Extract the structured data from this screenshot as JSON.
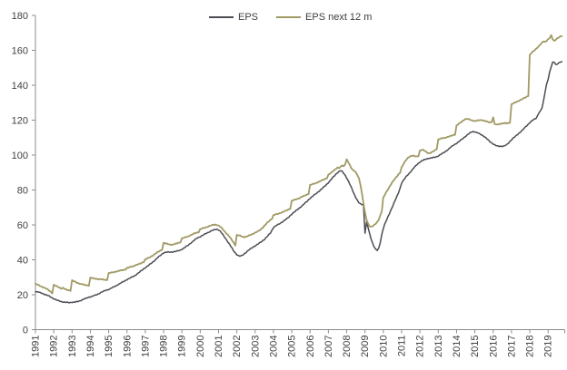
{
  "chart_data": {
    "type": "line",
    "title": "",
    "x_unit": "monthly",
    "x_start": "1991-01",
    "x_end": "2019-10",
    "x_tick_labels": [
      "1991",
      "1992",
      "1993",
      "1994",
      "1995",
      "1996",
      "1997",
      "1998",
      "1999",
      "2000",
      "2001",
      "2002",
      "2003",
      "2004",
      "2005",
      "2006",
      "2007",
      "2008",
      "2009",
      "2010",
      "2011",
      "2012",
      "2013",
      "2014",
      "2015",
      "2016",
      "2017",
      "2018",
      "2019"
    ],
    "y_ticks": [
      0,
      20,
      40,
      60,
      80,
      100,
      120,
      140,
      160,
      180
    ],
    "ylim": [
      0,
      180
    ],
    "grid": false,
    "legend_position": "top-center",
    "axis_color": "#8c8c8c",
    "text_color": "#404040",
    "series": [
      {
        "name": "EPS",
        "color": "#4c4c54",
        "values": [
          21.8,
          21.6,
          21.5,
          21.2,
          21.0,
          20.6,
          20.2,
          19.9,
          19.6,
          19.2,
          18.7,
          18.2,
          17.7,
          17.3,
          16.9,
          16.6,
          16.3,
          16.1,
          15.9,
          15.7,
          15.6,
          15.6,
          15.5,
          15.6,
          15.7,
          15.7,
          15.8,
          16.0,
          16.2,
          16.5,
          16.8,
          17.2,
          17.5,
          17.9,
          18.3,
          18.6,
          18.8,
          19.0,
          19.3,
          19.6,
          20.0,
          20.4,
          20.8,
          21.3,
          21.7,
          22.1,
          22.5,
          22.8,
          23.0,
          23.4,
          23.9,
          24.3,
          24.8,
          25.2,
          25.7,
          26.2,
          26.7,
          27.2,
          27.7,
          28.2,
          28.7,
          29.1,
          29.5,
          30.0,
          30.4,
          30.9,
          31.5,
          32.1,
          32.8,
          33.5,
          34.2,
          34.9,
          35.5,
          36.1,
          36.7,
          37.4,
          38.1,
          38.8,
          39.5,
          40.3,
          41.1,
          41.9,
          42.6,
          43.3,
          44.0,
          44.2,
          44.3,
          44.4,
          44.4,
          44.5,
          44.5,
          44.6,
          44.8,
          45.0,
          45.3,
          45.6,
          46.0,
          46.5,
          47.1,
          47.7,
          48.3,
          49.0,
          49.7,
          50.4,
          51.1,
          51.8,
          52.5,
          52.9,
          53.2,
          53.7,
          54.2,
          54.7,
          55.2,
          55.6,
          56.0,
          56.4,
          56.8,
          57.1,
          57.4,
          57.5,
          57.2,
          56.4,
          55.4,
          54.2,
          53.0,
          51.7,
          50.4,
          49.1,
          47.8,
          46.4,
          45.0,
          43.9,
          43.0,
          42.4,
          42.1,
          42.3,
          42.8,
          43.5,
          44.2,
          45.0,
          45.7,
          46.3,
          46.9,
          47.5,
          48.0,
          48.5,
          49.1,
          49.7,
          50.3,
          51.0,
          51.7,
          52.5,
          53.4,
          54.4,
          55.4,
          56.9,
          58.5,
          59.1,
          59.7,
          60.2,
          60.7,
          61.2,
          61.8,
          62.4,
          63.0,
          63.7,
          64.4,
          65.3,
          66.2,
          66.9,
          67.6,
          68.3,
          69.0,
          69.7,
          70.4,
          71.1,
          71.9,
          72.7,
          73.5,
          74.4,
          75.2,
          75.9,
          76.6,
          77.3,
          78.0,
          78.7,
          79.4,
          80.1,
          80.9,
          81.7,
          82.5,
          83.3,
          84.2,
          85.2,
          86.2,
          87.2,
          88.2,
          89.1,
          90.0,
          90.6,
          91.0,
          90.6,
          89.6,
          88.4,
          87.0,
          85.2,
          83.4,
          81.5,
          79.5,
          77.5,
          75.7,
          74.0,
          72.7,
          72.0,
          71.7,
          71.5,
          55.5,
          61.5,
          58.5,
          55.0,
          52.0,
          49.5,
          47.5,
          46.0,
          45.4,
          46.5,
          50.0,
          54.5,
          58.0,
          60.5,
          62.5,
          64.5,
          66.5,
          68.5,
          70.5,
          72.5,
          74.5,
          76.5,
          78.5,
          81.0,
          84.0,
          85.3,
          86.5,
          87.6,
          88.6,
          89.6,
          90.6,
          91.6,
          92.6,
          93.6,
          94.5,
          95.3,
          96.0,
          96.5,
          97.0,
          97.4,
          97.7,
          98.0,
          98.2,
          98.3,
          98.4,
          98.6,
          98.8,
          99.1,
          99.5,
          100.0,
          100.5,
          101.0,
          101.6,
          102.2,
          102.9,
          103.6,
          104.3,
          105.0,
          105.7,
          106.2,
          106.7,
          107.3,
          108.0,
          108.7,
          109.4,
          110.1,
          110.8,
          111.5,
          112.2,
          112.8,
          113.3,
          113.5,
          113.3,
          113.0,
          112.6,
          112.2,
          111.8,
          111.3,
          110.7,
          110.0,
          109.2,
          108.4,
          107.6,
          107.0,
          106.4,
          105.8,
          105.4,
          105.1,
          105.0,
          105.1,
          105.0,
          105.2,
          105.5,
          106.0,
          106.8,
          107.8,
          108.8,
          109.6,
          110.3,
          111.0,
          111.8,
          112.6,
          113.4,
          114.2,
          115.0,
          115.9,
          116.8,
          117.7,
          118.6,
          119.3,
          120.0,
          120.5,
          121.0,
          122.3,
          124.3,
          125.3,
          127.0,
          131.0,
          136.0,
          140.5,
          143.5,
          147.5,
          150.5,
          153.0,
          153.4,
          151.8,
          152.2,
          152.8,
          153.2,
          153.3
        ]
      },
      {
        "name": "EPS next 12 m",
        "color": "#a09a64",
        "values": [
          26.3,
          25.9,
          25.5,
          25.1,
          24.7,
          24.3,
          23.9,
          23.5,
          23.0,
          22.4,
          21.7,
          20.9,
          25.6,
          25.2,
          24.8,
          24.4,
          24.0,
          23.6,
          23.9,
          23.4,
          23.0,
          22.7,
          22.5,
          22.4,
          28.2,
          27.8,
          27.4,
          27.0,
          26.7,
          26.4,
          26.1,
          25.9,
          25.7,
          25.5,
          25.4,
          25.3,
          29.7,
          29.5,
          29.4,
          29.2,
          29.1,
          29.0,
          28.9,
          28.8,
          28.7,
          28.6,
          28.5,
          28.5,
          32.3,
          32.5,
          32.7,
          32.9,
          33.1,
          33.3,
          33.5,
          33.7,
          33.9,
          34.1,
          34.3,
          34.5,
          35.3,
          35.5,
          35.8,
          36.1,
          36.4,
          36.7,
          37.0,
          37.3,
          37.6,
          38.0,
          38.4,
          38.8,
          40.2,
          40.6,
          41.0,
          41.5,
          42.0,
          42.5,
          43.1,
          43.7,
          44.3,
          44.9,
          45.4,
          45.8,
          49.6,
          49.4,
          49.2,
          49.0,
          48.8,
          48.6,
          48.7,
          48.9,
          49.2,
          49.5,
          49.8,
          50.1,
          52.2,
          52.5,
          52.8,
          53.1,
          53.4,
          53.8,
          54.2,
          54.6,
          55.0,
          55.4,
          55.7,
          55.9,
          57.5,
          57.8,
          58.1,
          58.4,
          58.7,
          59.0,
          59.3,
          59.6,
          59.9,
          60.1,
          60.2,
          60.0,
          59.6,
          59.0,
          58.2,
          57.3,
          56.3,
          55.3,
          54.3,
          53.3,
          52.3,
          51.0,
          49.7,
          48.4,
          54.2,
          54.0,
          53.8,
          53.5,
          53.2,
          53.0,
          53.2,
          53.5,
          53.9,
          54.3,
          54.7,
          55.1,
          55.5,
          55.9,
          56.4,
          57.0,
          57.7,
          58.5,
          59.4,
          60.3,
          61.2,
          62.1,
          62.9,
          63.6,
          65.5,
          65.8,
          66.1,
          66.4,
          66.7,
          67.0,
          67.3,
          67.7,
          68.1,
          68.5,
          68.9,
          69.3,
          73.8,
          74.1,
          74.4,
          74.7,
          75.0,
          75.4,
          75.8,
          76.2,
          76.6,
          77.0,
          77.4,
          77.8,
          82.8,
          83.1,
          83.4,
          83.7,
          84.0,
          84.4,
          84.8,
          85.2,
          85.6,
          86.0,
          86.4,
          86.8,
          88.7,
          89.3,
          90.0,
          90.8,
          91.5,
          92.2,
          92.8,
          92.5,
          93.2,
          94.2,
          93.6,
          94.8,
          97.5,
          96.0,
          94.2,
          92.6,
          91.5,
          91.0,
          90.0,
          88.5,
          86.5,
          83.0,
          78.0,
          72.5,
          67.0,
          63.0,
          60.5,
          59.3,
          59.0,
          59.4,
          60.0,
          60.6,
          61.5,
          63.0,
          65.5,
          68.0,
          75.5,
          77.2,
          78.8,
          80.3,
          81.8,
          83.2,
          84.5,
          85.7,
          86.8,
          87.9,
          89.0,
          90.0,
          93.0,
          94.5,
          96.0,
          97.3,
          98.3,
          99.0,
          99.4,
          99.6,
          99.5,
          99.3,
          99.2,
          99.5,
          102.5,
          102.8,
          102.9,
          102.6,
          102.0,
          101.3,
          101.0,
          101.2,
          101.7,
          102.3,
          102.9,
          103.5,
          108.8,
          109.2,
          109.5,
          109.7,
          109.9,
          110.1,
          110.3,
          110.6,
          110.9,
          111.2,
          111.5,
          111.8,
          116.8,
          117.5,
          118.2,
          118.9,
          119.6,
          120.2,
          120.6,
          120.7,
          120.5,
          120.2,
          119.9,
          119.7,
          119.5,
          119.6,
          119.8,
          120.0,
          120.1,
          120.0,
          119.7,
          119.4,
          119.1,
          118.9,
          118.8,
          119.0,
          121.5,
          117.8,
          117.4,
          117.6,
          117.8,
          118.0,
          118.2,
          118.1,
          118.3,
          118.2,
          118.4,
          118.6,
          129.0,
          129.5,
          130.0,
          130.4,
          130.8,
          131.2,
          131.6,
          132.0,
          132.5,
          133.0,
          133.5,
          134.0,
          157.3,
          158.3,
          159.2,
          160.0,
          160.8,
          161.6,
          162.4,
          163.3,
          164.3,
          165.3,
          164.8,
          165.5,
          166.3,
          167.0,
          168.5,
          166.5,
          165.4,
          166.2,
          166.8,
          167.3,
          167.8,
          168.2
        ]
      }
    ]
  }
}
